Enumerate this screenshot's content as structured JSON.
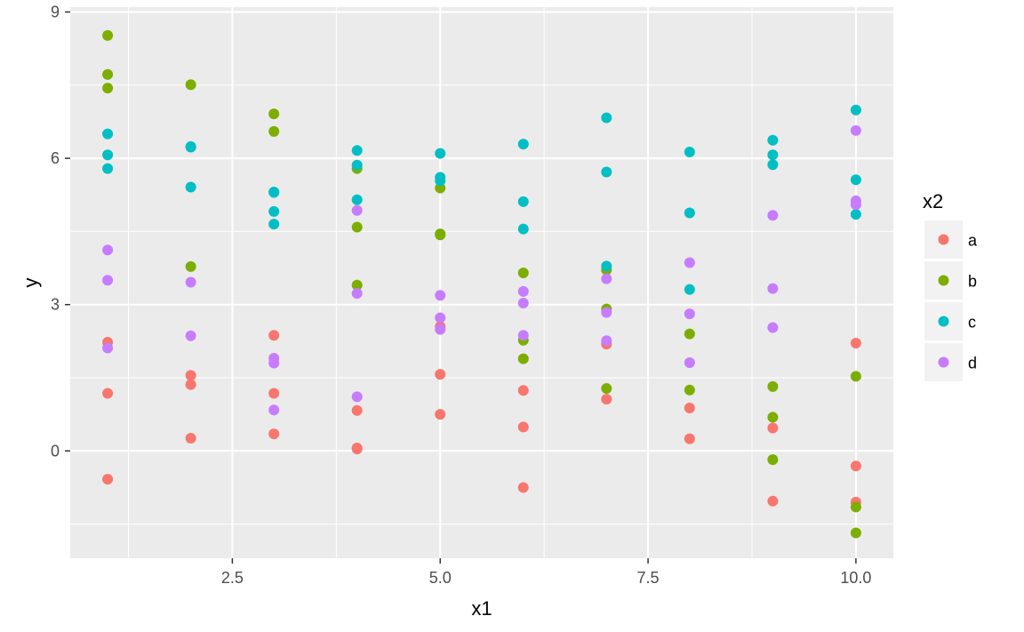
{
  "chart_data": {
    "type": "scatter",
    "xlabel": "x1",
    "ylabel": "y",
    "xlim": [
      0.55,
      10.45
    ],
    "ylim": [
      -2.2,
      9.1
    ],
    "x_ticks": [
      2.5,
      5.0,
      7.5,
      10.0
    ],
    "x_tick_labels": [
      "2.5",
      "5.0",
      "7.5",
      "10.0"
    ],
    "y_ticks": [
      0,
      3,
      6,
      9
    ],
    "y_tick_labels": [
      "0",
      "3",
      "6",
      "9"
    ],
    "grid": true,
    "legend": {
      "title": "x2",
      "placement": "right"
    },
    "series": [
      {
        "name": "a",
        "color": "#F8766D",
        "points": [
          [
            1,
            2.23
          ],
          [
            1,
            1.18
          ],
          [
            1,
            -0.58
          ],
          [
            2,
            1.55
          ],
          [
            2,
            1.36
          ],
          [
            2,
            0.26
          ],
          [
            3,
            2.37
          ],
          [
            3,
            1.18
          ],
          [
            3,
            0.35
          ],
          [
            4,
            0.83
          ],
          [
            4,
            0.06
          ],
          [
            4,
            0.04
          ],
          [
            5,
            2.55
          ],
          [
            5,
            1.57
          ],
          [
            5,
            0.75
          ],
          [
            6,
            1.24
          ],
          [
            6,
            0.49
          ],
          [
            6,
            -0.75
          ],
          [
            7,
            2.19
          ],
          [
            7,
            1.06
          ],
          [
            8,
            0.88
          ],
          [
            8,
            0.25
          ],
          [
            9,
            0.47
          ],
          [
            9,
            -1.03
          ],
          [
            10,
            2.21
          ],
          [
            10,
            -0.31
          ],
          [
            10,
            -1.05
          ]
        ]
      },
      {
        "name": "b",
        "color": "#7CAE00",
        "points": [
          [
            1,
            8.52
          ],
          [
            1,
            7.72
          ],
          [
            1,
            7.44
          ],
          [
            2,
            7.51
          ],
          [
            2,
            3.78
          ],
          [
            3,
            6.91
          ],
          [
            3,
            6.55
          ],
          [
            4,
            5.79
          ],
          [
            4,
            4.59
          ],
          [
            4,
            3.4
          ],
          [
            5,
            5.39
          ],
          [
            5,
            4.45
          ],
          [
            5,
            4.43
          ],
          [
            6,
            3.65
          ],
          [
            6,
            2.27
          ],
          [
            6,
            1.89
          ],
          [
            7,
            3.71
          ],
          [
            7,
            2.91
          ],
          [
            7,
            1.28
          ],
          [
            8,
            2.4
          ],
          [
            8,
            1.25
          ],
          [
            9,
            1.32
          ],
          [
            9,
            0.69
          ],
          [
            9,
            -0.18
          ],
          [
            10,
            1.53
          ],
          [
            10,
            -1.15
          ],
          [
            10,
            -1.68
          ]
        ]
      },
      {
        "name": "c",
        "color": "#00BFC4",
        "points": [
          [
            1,
            6.5
          ],
          [
            1,
            6.07
          ],
          [
            1,
            5.79
          ],
          [
            2,
            6.24
          ],
          [
            2,
            6.23
          ],
          [
            2,
            5.41
          ],
          [
            3,
            5.31
          ],
          [
            3,
            5.3
          ],
          [
            3,
            4.91
          ],
          [
            3,
            4.65
          ],
          [
            4,
            6.16
          ],
          [
            4,
            5.86
          ],
          [
            4,
            5.15
          ],
          [
            5,
            6.1
          ],
          [
            5,
            5.61
          ],
          [
            5,
            5.54
          ],
          [
            6,
            6.29
          ],
          [
            6,
            5.11
          ],
          [
            6,
            4.55
          ],
          [
            7,
            6.83
          ],
          [
            7,
            5.72
          ],
          [
            7,
            3.79
          ],
          [
            8,
            6.13
          ],
          [
            8,
            4.88
          ],
          [
            8,
            3.31
          ],
          [
            9,
            6.37
          ],
          [
            9,
            6.07
          ],
          [
            9,
            5.87
          ],
          [
            10,
            6.99
          ],
          [
            10,
            5.56
          ],
          [
            10,
            4.85
          ]
        ]
      },
      {
        "name": "d",
        "color": "#C77CFF",
        "points": [
          [
            1,
            4.12
          ],
          [
            1,
            3.5
          ],
          [
            1,
            2.11
          ],
          [
            2,
            3.46
          ],
          [
            2,
            2.36
          ],
          [
            3,
            1.9
          ],
          [
            3,
            1.8
          ],
          [
            3,
            0.84
          ],
          [
            4,
            4.93
          ],
          [
            4,
            3.23
          ],
          [
            4,
            1.11
          ],
          [
            5,
            3.19
          ],
          [
            5,
            2.73
          ],
          [
            5,
            2.49
          ],
          [
            6,
            3.27
          ],
          [
            6,
            3.03
          ],
          [
            6,
            2.37
          ],
          [
            7,
            3.53
          ],
          [
            7,
            2.84
          ],
          [
            7,
            2.26
          ],
          [
            8,
            3.86
          ],
          [
            8,
            2.81
          ],
          [
            8,
            1.81
          ],
          [
            9,
            4.83
          ],
          [
            9,
            3.33
          ],
          [
            9,
            2.53
          ],
          [
            10,
            6.57
          ],
          [
            10,
            5.13
          ],
          [
            10,
            5.05
          ]
        ]
      }
    ]
  }
}
